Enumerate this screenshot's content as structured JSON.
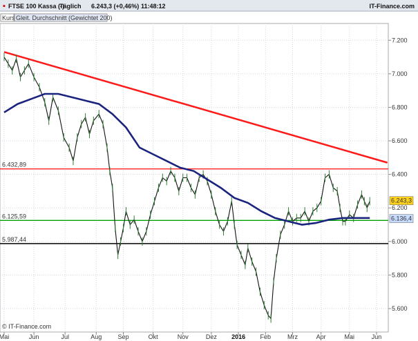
{
  "header": {
    "title": "FTSE 100 Kassa (-)",
    "interval": "Täglich",
    "last_value": "6.243,3 (+0,46%)",
    "time": "11:48:12",
    "brand": "IT-Finance.com"
  },
  "legend": {
    "kurs_label": "Kurs",
    "ma_label": "Gleit. Durchschnitt (Gewichtet 200)"
  },
  "copyright": "© IT-Finance.com",
  "levels": {
    "resistance": {
      "label": "6.432,89",
      "value": 6432.89,
      "color": "#ff2020"
    },
    "support": {
      "label": "6.125,59",
      "value": 6125.59,
      "color": "#00a000"
    },
    "low": {
      "label": "5.987,44",
      "value": 5987.44,
      "color": "#000000"
    }
  },
  "badges": {
    "last": {
      "label": "6.243,3",
      "value": 6243.3,
      "color": "#ffd21a"
    },
    "ma": {
      "label": "6.136,4",
      "value": 6136.4,
      "color": "#c8dcff"
    }
  },
  "chart_data": {
    "type": "line",
    "title": "FTSE 100 Kassa (-)",
    "ylim": [
      5460,
      7300
    ],
    "x_unit": "trading-day index (0 = early May 2015)",
    "x_range": [
      0,
      270
    ],
    "y_ticks": [
      {
        "value": 7200,
        "label": "7.200"
      },
      {
        "value": 7000,
        "label": "7.000"
      },
      {
        "value": 6800,
        "label": "6.800"
      },
      {
        "value": 6600,
        "label": "6.600"
      },
      {
        "value": 6400,
        "label": "6.400"
      },
      {
        "value": 6200,
        "label": "6.200"
      },
      {
        "value": 6000,
        "label": "6.000"
      },
      {
        "value": 5800,
        "label": "5.800"
      },
      {
        "value": 5600,
        "label": "5.600"
      }
    ],
    "x_ticks": [
      {
        "x": 0,
        "label": "Mai",
        "bold": false
      },
      {
        "x": 22,
        "label": "Jun",
        "bold": false
      },
      {
        "x": 45,
        "label": "Jul",
        "bold": false
      },
      {
        "x": 68,
        "label": "Aug",
        "bold": false
      },
      {
        "x": 88,
        "label": "Sep",
        "bold": false
      },
      {
        "x": 110,
        "label": "Okt",
        "bold": false
      },
      {
        "x": 132,
        "label": "Nov",
        "bold": false
      },
      {
        "x": 153,
        "label": "Dez",
        "bold": false
      },
      {
        "x": 173,
        "label": "2016",
        "bold": true
      },
      {
        "x": 193,
        "label": "Feb",
        "bold": false
      },
      {
        "x": 213,
        "label": "Mrz",
        "bold": false
      },
      {
        "x": 234,
        "label": "Apr",
        "bold": false
      },
      {
        "x": 255,
        "label": "Mai",
        "bold": false
      },
      {
        "x": 275,
        "label": "Jun",
        "bold": false
      }
    ],
    "price_series": {
      "name": "Kurs",
      "color": "#111111",
      "points": [
        [
          0,
          7100
        ],
        [
          3,
          7060
        ],
        [
          6,
          7020
        ],
        [
          9,
          7090
        ],
        [
          12,
          6980
        ],
        [
          15,
          7020
        ],
        [
          18,
          7060
        ],
        [
          22,
          6980
        ],
        [
          26,
          6920
        ],
        [
          30,
          6830
        ],
        [
          33,
          6720
        ],
        [
          36,
          6860
        ],
        [
          40,
          6780
        ],
        [
          44,
          6620
        ],
        [
          48,
          6560
        ],
        [
          51,
          6480
        ],
        [
          54,
          6620
        ],
        [
          57,
          6700
        ],
        [
          60,
          6740
        ],
        [
          63,
          6640
        ],
        [
          66,
          6720
        ],
        [
          70,
          6760
        ],
        [
          73,
          6700
        ],
        [
          76,
          6560
        ],
        [
          78,
          6420
        ],
        [
          80,
          6320
        ],
        [
          82,
          6080
        ],
        [
          84,
          5920
        ],
        [
          86,
          6000
        ],
        [
          88,
          6080
        ],
        [
          90,
          6180
        ],
        [
          93,
          6100
        ],
        [
          96,
          6130
        ],
        [
          99,
          6060
        ],
        [
          102,
          6000
        ],
        [
          105,
          6060
        ],
        [
          108,
          6160
        ],
        [
          111,
          6240
        ],
        [
          114,
          6320
        ],
        [
          117,
          6380
        ],
        [
          120,
          6360
        ],
        [
          123,
          6420
        ],
        [
          126,
          6380
        ],
        [
          129,
          6300
        ],
        [
          132,
          6380
        ],
        [
          135,
          6380
        ],
        [
          138,
          6320
        ],
        [
          141,
          6280
        ],
        [
          144,
          6380
        ],
        [
          147,
          6400
        ],
        [
          150,
          6360
        ],
        [
          153,
          6280
        ],
        [
          156,
          6180
        ],
        [
          159,
          6100
        ],
        [
          162,
          6060
        ],
        [
          165,
          6120
        ],
        [
          168,
          6240
        ],
        [
          170,
          6100
        ],
        [
          172,
          5980
        ],
        [
          175,
          5920
        ],
        [
          178,
          5860
        ],
        [
          180,
          5960
        ],
        [
          183,
          5880
        ],
        [
          186,
          5820
        ],
        [
          189,
          5700
        ],
        [
          192,
          5620
        ],
        [
          195,
          5560
        ],
        [
          197,
          5540
        ],
        [
          199,
          5760
        ],
        [
          201,
          5900
        ],
        [
          204,
          6040
        ],
        [
          207,
          6100
        ],
        [
          210,
          6180
        ],
        [
          213,
          6120
        ],
        [
          216,
          6140
        ],
        [
          219,
          6140
        ],
        [
          222,
          6180
        ],
        [
          225,
          6120
        ],
        [
          228,
          6180
        ],
        [
          231,
          6200
        ],
        [
          234,
          6240
        ],
        [
          237,
          6380
        ],
        [
          240,
          6400
        ],
        [
          243,
          6320
        ],
        [
          246,
          6300
        ],
        [
          248,
          6200
        ],
        [
          250,
          6120
        ],
        [
          252,
          6120
        ],
        [
          255,
          6160
        ],
        [
          258,
          6140
        ],
        [
          261,
          6220
        ],
        [
          264,
          6280
        ],
        [
          266,
          6240
        ],
        [
          268,
          6200
        ],
        [
          270,
          6240
        ]
      ]
    },
    "ma_series": {
      "name": "Gleit. Durchschnitt (Gewichtet 200)",
      "color": "#1a237e",
      "points": [
        [
          0,
          6770
        ],
        [
          10,
          6820
        ],
        [
          20,
          6850
        ],
        [
          30,
          6880
        ],
        [
          40,
          6880
        ],
        [
          50,
          6860
        ],
        [
          60,
          6840
        ],
        [
          70,
          6820
        ],
        [
          80,
          6760
        ],
        [
          90,
          6680
        ],
        [
          100,
          6560
        ],
        [
          110,
          6520
        ],
        [
          120,
          6480
        ],
        [
          130,
          6440
        ],
        [
          140,
          6420
        ],
        [
          150,
          6370
        ],
        [
          160,
          6320
        ],
        [
          170,
          6260
        ],
        [
          180,
          6230
        ],
        [
          190,
          6180
        ],
        [
          200,
          6140
        ],
        [
          210,
          6120
        ],
        [
          220,
          6100
        ],
        [
          230,
          6110
        ],
        [
          240,
          6130
        ],
        [
          250,
          6140
        ],
        [
          260,
          6140
        ],
        [
          270,
          6140
        ]
      ]
    },
    "trendline": {
      "color": "#ff1a1a",
      "from": [
        0,
        7130
      ],
      "to": [
        283,
        6470
      ]
    }
  }
}
